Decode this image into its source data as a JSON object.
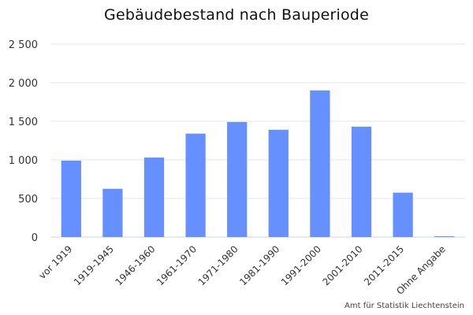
{
  "chart_data": {
    "type": "bar",
    "title": "Gebäudebestand nach Bauperiode",
    "credits": "Amt für Statistik Liechtenstein",
    "categories": [
      "vor 1919",
      "1919-1945",
      "1946-1960",
      "1961-1970",
      "1971-1980",
      "1981-1990",
      "1991-2000",
      "2001-2010",
      "2011-2015",
      "Ohne Angabe"
    ],
    "series": [
      {
        "values": [
          990,
          625,
          1030,
          1340,
          1490,
          1390,
          1900,
          1430,
          575,
          10
        ]
      }
    ],
    "ylim": [
      0,
      2500
    ],
    "yticks": [
      0,
      500,
      1000,
      1500,
      2000,
      2500
    ],
    "ytick_labels": [
      "0",
      "500",
      "1 000",
      "1 500",
      "2 000",
      "2 500"
    ],
    "grid": true,
    "bar_color": "#6690ff",
    "xlabel": "",
    "ylabel": ""
  }
}
